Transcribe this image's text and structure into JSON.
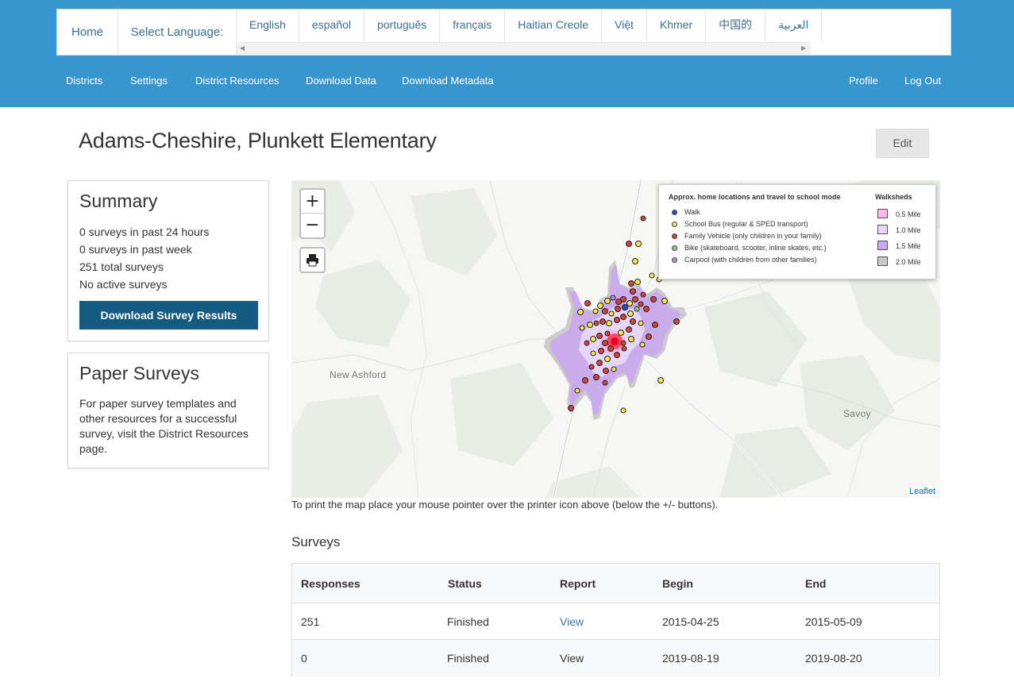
{
  "header": {
    "home_label": "Home",
    "select_language_label": "Select Language:",
    "languages": [
      "English",
      "español",
      "português",
      "français",
      "Haitian Creole",
      "Việt",
      "Khmer",
      "中国的",
      "العربية"
    ]
  },
  "nav": {
    "left": [
      "Districts",
      "Settings",
      "District Resources",
      "Download Data",
      "Download Metadata"
    ],
    "right": [
      "Profile",
      "Log Out"
    ]
  },
  "page": {
    "title": "Adams-Cheshire, Plunkett Elementary",
    "edit_label": "Edit"
  },
  "summary": {
    "title": "Summary",
    "stats": [
      "0 surveys in past 24 hours",
      "0 surveys in past week",
      "251 total surveys",
      "No active surveys"
    ],
    "download_label": "Download Survey Results"
  },
  "paper": {
    "title": "Paper Surveys",
    "text": "For paper survey templates and other resources for a successful survey, visit the District Resources page."
  },
  "map": {
    "zoom_in": "+",
    "zoom_out": "−",
    "places": [
      "New Ashford",
      "Savoy"
    ],
    "attribution": "Leaflet",
    "legend": {
      "title": "Approx. home locations and travel to school mode",
      "modes": [
        {
          "label": "Walk",
          "color": "#1e4fcf"
        },
        {
          "label": "School Bus (regular & SPED transport)",
          "color": "#f5e84a"
        },
        {
          "label": "Family Vehicle (only children in your family)",
          "color": "#d0443a"
        },
        {
          "label": "Bike (skateboard, scooter, inline skates, etc.)",
          "color": "#8fd07a"
        },
        {
          "label": "Carpool (with children from other families)",
          "color": "#b48ee0"
        }
      ],
      "walksheds_title": "Walksheds",
      "walksheds": [
        {
          "label": "0.5 Mile",
          "color": "#f7b8f0"
        },
        {
          "label": "1.0 Mile",
          "color": "#e6d6f7"
        },
        {
          "label": "1.5 Mile",
          "color": "#c9a9ec"
        },
        {
          "label": "2.0 Mile",
          "color": "#c8c8c8"
        }
      ]
    },
    "note": "To print the map place your mouse pointer over the printer icon above (below the +/- buttons)."
  },
  "surveys": {
    "title": "Surveys",
    "columns": [
      "Responses",
      "Status",
      "Report",
      "Begin",
      "End"
    ],
    "rows": [
      {
        "responses": "251",
        "status": "Finished",
        "report": "View",
        "begin": "2015-04-25",
        "end": "2015-05-09"
      },
      {
        "responses": "0",
        "status": "Finished",
        "report": "View",
        "begin": "2019-08-19",
        "end": "2019-08-20"
      }
    ]
  }
}
